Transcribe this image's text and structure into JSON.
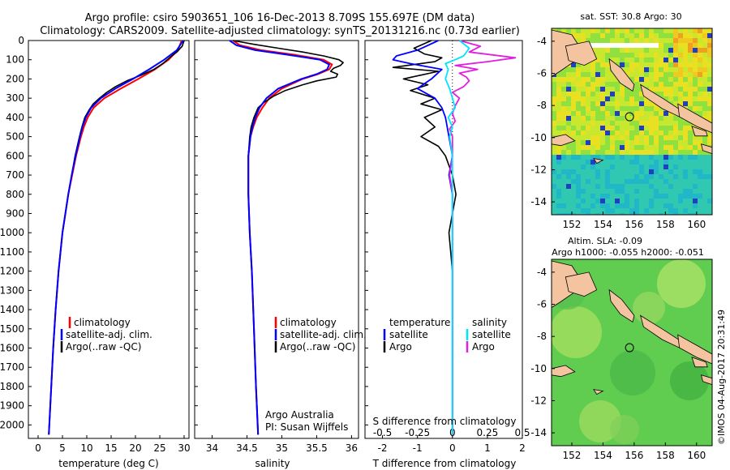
{
  "header": {
    "line1": "Argo profile: csiro 5903651_106 16-Dec-2013 8.709S 155.697E (DM data)",
    "line2": "Climatology: CARS2009. Satellite-adjusted climatology: synTS_20131216.nc (0.73d earlier)"
  },
  "credit": "©IMOS 04-Aug-2017 20:31:49",
  "colors": {
    "climatology": "#ff0000",
    "satellite": "#0000ff",
    "argo": "#000000",
    "sal_satellite": "#00e5ff",
    "sal_argo": "#e020e0"
  },
  "chart_data": [
    {
      "type": "line",
      "name": "temperature-profile",
      "xlabel": "temperature (deg C)",
      "ylabel": "",
      "xlim": [
        -2,
        31
      ],
      "ylim": [
        2070,
        0
      ],
      "xticks": [
        "0",
        "5",
        "10",
        "15",
        "20",
        "25",
        "30"
      ],
      "yticks": [
        "0",
        "100",
        "200",
        "300",
        "400",
        "500",
        "600",
        "700",
        "800",
        "900",
        "1000",
        "1100",
        "1200",
        "1300",
        "1400",
        "1500",
        "1600",
        "1700",
        "1800",
        "1900",
        "2000"
      ],
      "legend": [
        "climatology",
        "satellite-adj. clim.",
        "Argo(..raw -QC)"
      ],
      "series": [
        {
          "name": "climatology",
          "depth": [
            0,
            50,
            100,
            150,
            200,
            250,
            300,
            350,
            400,
            450,
            500,
            600,
            700,
            800,
            900,
            1000,
            1200,
            1400,
            1600,
            1800,
            2050
          ],
          "values": [
            29.5,
            28.7,
            26.8,
            24.0,
            20.6,
            17.0,
            13.6,
            11.4,
            10.2,
            9.4,
            8.8,
            7.8,
            7.0,
            6.2,
            5.6,
            5.0,
            4.2,
            3.6,
            3.1,
            2.7,
            2.2
          ]
        },
        {
          "name": "satellite-adj. clim.",
          "depth": [
            0,
            50,
            100,
            150,
            200,
            250,
            300,
            350,
            400,
            450,
            500,
            600,
            700,
            800,
            900,
            1000,
            1200,
            1400,
            1600,
            1800,
            2050
          ],
          "values": [
            29.8,
            28.5,
            25.9,
            22.8,
            19.5,
            15.9,
            12.9,
            10.9,
            9.8,
            9.1,
            8.6,
            7.7,
            6.9,
            6.2,
            5.6,
            5.0,
            4.2,
            3.6,
            3.1,
            2.7,
            2.2
          ]
        },
        {
          "name": "Argo(..raw -QC)",
          "depth": [
            0,
            30,
            60,
            90,
            120,
            150,
            180,
            210,
            240,
            270,
            300,
            330,
            360,
            400,
            450,
            500,
            600,
            700,
            800,
            900,
            1000,
            1200,
            1400,
            1600,
            1800,
            2050
          ],
          "values": [
            30.0,
            29.6,
            28.5,
            27.0,
            25.6,
            23.8,
            21.2,
            18.2,
            15.9,
            14.1,
            12.6,
            11.3,
            10.5,
            9.6,
            9.0,
            8.5,
            7.6,
            6.9,
            6.2,
            5.6,
            5.0,
            4.2,
            3.6,
            3.1,
            2.7,
            2.2
          ]
        }
      ]
    },
    {
      "type": "line",
      "name": "salinity-profile",
      "xlabel": "salinity",
      "xlim": [
        33.75,
        36.1
      ],
      "ylim": [
        2070,
        0
      ],
      "xticks": [
        "34",
        "34.5",
        "35",
        "35.5",
        "36"
      ],
      "legend": [
        "climatology",
        "satellite-adj. clim.",
        "Argo(..raw -QC)"
      ],
      "annotation": [
        "Argo Australia",
        "PI: Susan Wijffels"
      ],
      "series": [
        {
          "name": "climatology",
          "depth": [
            0,
            25,
            50,
            75,
            100,
            125,
            150,
            175,
            200,
            250,
            300,
            350,
            400,
            450,
            500,
            600,
            800,
            1000,
            1200,
            1500,
            1800,
            2050
          ],
          "values": [
            34.3,
            34.4,
            34.7,
            35.2,
            35.6,
            35.72,
            35.68,
            35.52,
            35.3,
            35.0,
            34.82,
            34.72,
            34.64,
            34.59,
            34.55,
            34.52,
            34.52,
            34.54,
            34.57,
            34.6,
            34.63,
            34.66
          ]
        },
        {
          "name": "satellite-adj. clim.",
          "depth": [
            0,
            25,
            50,
            75,
            100,
            125,
            150,
            175,
            200,
            250,
            300,
            350,
            400,
            450,
            500,
            600,
            800,
            1000,
            1200,
            1500,
            1800,
            2050
          ],
          "values": [
            34.25,
            34.35,
            34.62,
            35.1,
            35.55,
            35.68,
            35.65,
            35.5,
            35.28,
            34.95,
            34.78,
            34.68,
            34.62,
            34.58,
            34.55,
            34.52,
            34.52,
            34.54,
            34.57,
            34.6,
            34.63,
            34.66
          ]
        },
        {
          "name": "Argo(..raw -QC)",
          "depth": [
            0,
            20,
            40,
            60,
            80,
            100,
            115,
            130,
            145,
            160,
            175,
            190,
            210,
            230,
            260,
            290,
            320,
            350,
            400,
            450,
            500,
            600,
            800,
            1000,
            1200,
            1500,
            1800,
            2050
          ],
          "values": [
            34.3,
            34.6,
            34.95,
            35.3,
            35.6,
            35.82,
            35.88,
            35.84,
            35.74,
            35.7,
            35.8,
            35.78,
            35.5,
            35.3,
            35.05,
            34.88,
            34.75,
            34.66,
            34.6,
            34.56,
            34.54,
            34.52,
            34.52,
            34.54,
            34.57,
            34.6,
            34.63,
            34.66
          ]
        }
      ]
    },
    {
      "type": "line",
      "name": "difference-profile",
      "xlabel": "T difference from climatology",
      "top_axis_label": "S difference from climatology",
      "xlim": [
        -2.5,
        2.0
      ],
      "ylim": [
        2070,
        0
      ],
      "xticks": [
        "-2",
        "-1",
        "0",
        "1",
        "2"
      ],
      "top_ticks": [
        "-0.5",
        "-0.25",
        "0",
        "0.25",
        "0.5"
      ],
      "legend_temperature": [
        "temperature",
        "satellite",
        "Argo"
      ],
      "legend_salinity": [
        "salinity",
        "satellite",
        "Argo"
      ],
      "series": [
        {
          "name": "temperature satellite",
          "depth": [
            0,
            50,
            80,
            100,
            120,
            150,
            200,
            250,
            300,
            350,
            400,
            500,
            600,
            700,
            800,
            1000,
            1200,
            1400,
            1600,
            1800,
            2050
          ],
          "values": [
            -0.4,
            -1.0,
            -1.6,
            -1.7,
            -1.2,
            -0.3,
            -0.6,
            -1.0,
            -0.5,
            -0.3,
            -0.2,
            -0.1,
            0.0,
            -0.1,
            0.0,
            0.0,
            0.0,
            0.0,
            0.0,
            0.0,
            0.0
          ]
        },
        {
          "name": "temperature Argo",
          "depth": [
            0,
            40,
            70,
            90,
            110,
            140,
            160,
            180,
            200,
            230,
            260,
            300,
            330,
            360,
            400,
            450,
            500,
            550,
            600,
            650,
            700,
            800,
            1000,
            1200,
            1400,
            1600,
            1800,
            2050
          ],
          "values": [
            -0.6,
            -1.1,
            -0.8,
            -0.3,
            -0.5,
            -1.7,
            -0.4,
            -0.9,
            -1.4,
            -0.7,
            -1.2,
            -0.5,
            -0.9,
            -0.3,
            -0.8,
            -0.5,
            -0.9,
            -0.4,
            -0.2,
            -0.1,
            0.0,
            0.1,
            -0.1,
            0.0,
            0.0,
            0.0,
            0.0,
            0.0
          ]
        },
        {
          "name": "salinity satellite",
          "depth": [
            0,
            40,
            80,
            100,
            120,
            150,
            200,
            250,
            300,
            350,
            400,
            450,
            500,
            600,
            800,
            1000,
            1200,
            1500,
            1800,
            2050
          ],
          "values": [
            0.05,
            0.12,
            0.08,
            0.02,
            -0.05,
            -0.03,
            -0.05,
            -0.02,
            0.0,
            0.02,
            -0.03,
            0.0,
            -0.02,
            0.0,
            0.0,
            0.0,
            0.0,
            0.0,
            0.0,
            0.0
          ]
        },
        {
          "name": "salinity Argo",
          "depth": [
            0,
            30,
            60,
            90,
            110,
            130,
            150,
            170,
            190,
            210,
            240,
            270,
            300,
            340,
            380,
            420,
            460,
            500,
            600,
            700,
            800,
            1000,
            1200,
            1400,
            1600,
            1800,
            2050
          ],
          "values": [
            0.05,
            0.2,
            0.12,
            0.45,
            0.25,
            0.02,
            0.18,
            0.05,
            0.1,
            0.12,
            0.08,
            0.0,
            0.05,
            0.02,
            0.0,
            0.02,
            -0.02,
            0.0,
            0.0,
            -0.02,
            0.0,
            0.0,
            0.0,
            0.0,
            0.0,
            0.0,
            0.0
          ]
        }
      ]
    },
    {
      "type": "heatmap",
      "name": "sst-map",
      "title": "sat. SST: 30.8  Argo: 30",
      "xlim": [
        150.7,
        161.0
      ],
      "ylim": [
        -14.8,
        -3.2
      ],
      "xticks": [
        "152",
        "154",
        "156",
        "158",
        "160"
      ],
      "yticks": [
        "-4",
        "-6",
        "-8",
        "-10",
        "-12",
        "-14"
      ],
      "marker": [
        155.7,
        -8.7
      ]
    },
    {
      "type": "heatmap",
      "name": "sla-map",
      "title": "Altim. SLA: -0.09",
      "subtitle": "Argo h1000: -0.055  h2000: -0.051",
      "xlim": [
        150.7,
        161.0
      ],
      "ylim": [
        -14.8,
        -3.2
      ],
      "xticks": [
        "152",
        "154",
        "156",
        "158",
        "160"
      ],
      "yticks": [
        "-4",
        "-6",
        "-8",
        "-10",
        "-12",
        "-14"
      ],
      "marker": [
        155.7,
        -8.7
      ]
    }
  ]
}
